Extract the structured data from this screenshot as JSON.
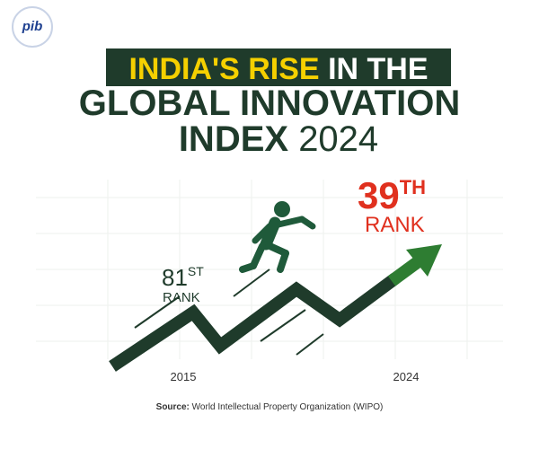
{
  "logo": {
    "text": "pib"
  },
  "title": {
    "highlight": "INDIA'S RISE",
    "line1_rest": "IN THE",
    "line2": "GLOBAL INNOVATION",
    "line3_bold": "INDEX",
    "line3_year": "2024"
  },
  "start": {
    "rank": "81",
    "suffix": "ST",
    "label": "RANK",
    "year": "2015"
  },
  "end": {
    "rank": "39",
    "suffix": "TH",
    "label": "RANK",
    "year": "2024"
  },
  "source": {
    "label": "Source:",
    "text": "World Intellectual Property Organization (WIPO)"
  }
}
